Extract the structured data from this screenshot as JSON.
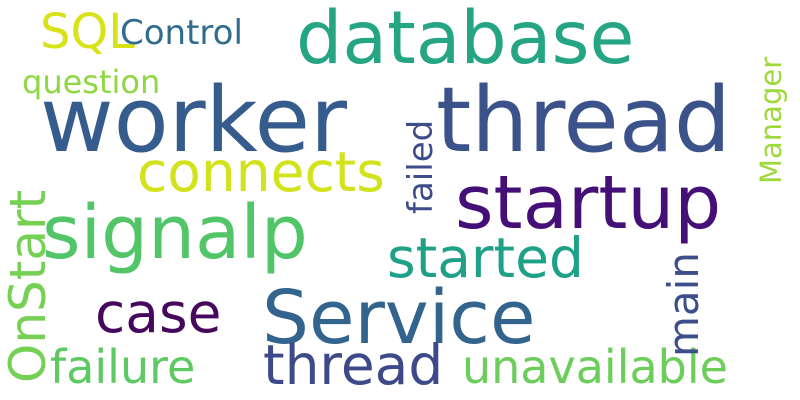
{
  "words": {
    "worker": {
      "text": "worker",
      "color": "#365c8d"
    },
    "thread_main": {
      "text": "thread",
      "color": "#3b528b"
    },
    "database": {
      "text": "database",
      "color": "#25a584"
    },
    "startup": {
      "text": "startup",
      "color": "#440f76"
    },
    "signalp": {
      "text": "signalp",
      "color": "#52c569"
    },
    "service": {
      "text": "Service",
      "color": "#32648e"
    },
    "connects": {
      "text": "connects",
      "color": "#d2e21b"
    },
    "started": {
      "text": "started",
      "color": "#1fa187"
    },
    "case": {
      "text": "case",
      "color": "#46085c"
    },
    "thread_small": {
      "text": "thread",
      "color": "#3e4989"
    },
    "failure": {
      "text": "failure",
      "color": "#5ec962"
    },
    "unavailable": {
      "text": "unavailable",
      "color": "#6ccd5a"
    },
    "sql": {
      "text": "SQL",
      "color": "#d8e219"
    },
    "control": {
      "text": "Control",
      "color": "#2f6c8e"
    },
    "question": {
      "text": "question",
      "color": "#8fd744"
    },
    "onstart": {
      "text": "OnStart",
      "color": "#75d054"
    },
    "failed": {
      "text": "failed",
      "color": "#3e4c8a"
    },
    "main": {
      "text": "main",
      "color": "#3c4f8a"
    },
    "manager": {
      "text": "Manager",
      "color": "#9dd93b"
    }
  }
}
